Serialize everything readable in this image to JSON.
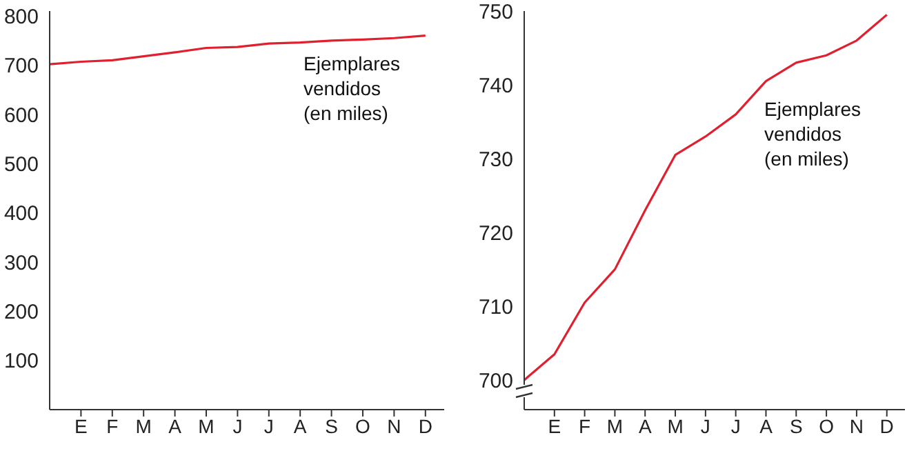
{
  "chart_data": [
    {
      "type": "line",
      "categories": [
        null,
        "E",
        "F",
        "M",
        "A",
        "M",
        "J",
        "J",
        "A",
        "S",
        "O",
        "N",
        "D"
      ],
      "series": [
        {
          "color": "#e0202e",
          "values": [
            702,
            707,
            710,
            718,
            726,
            735,
            737,
            744,
            746,
            750,
            752,
            755,
            760
          ]
        }
      ],
      "ylim": [
        0,
        810
      ],
      "yticks": [
        100,
        200,
        300,
        400,
        500,
        600,
        700,
        800
      ],
      "grid": false,
      "legend": false,
      "marker": "none",
      "line_style": "solid",
      "annotations": [
        "Ejemplares\nvendidos\n(en miles)"
      ]
    },
    {
      "type": "line",
      "categories": [
        null,
        "E",
        "F",
        "M",
        "A",
        "M",
        "J",
        "J",
        "A",
        "S",
        "O",
        "N",
        "D"
      ],
      "series": [
        {
          "color": "#e0202e",
          "values": [
            700,
            703.5,
            710.5,
            715,
            723,
            730.5,
            733,
            736,
            740.5,
            743,
            744,
            746,
            749.5
          ]
        }
      ],
      "ylim": [
        696,
        750
      ],
      "yticks": [
        700,
        710,
        720,
        730,
        740,
        750
      ],
      "grid": false,
      "legend": false,
      "marker": "none",
      "line_style": "solid",
      "annotations": [
        "Ejemplares\nvendidos\n(en miles)"
      ]
    }
  ]
}
